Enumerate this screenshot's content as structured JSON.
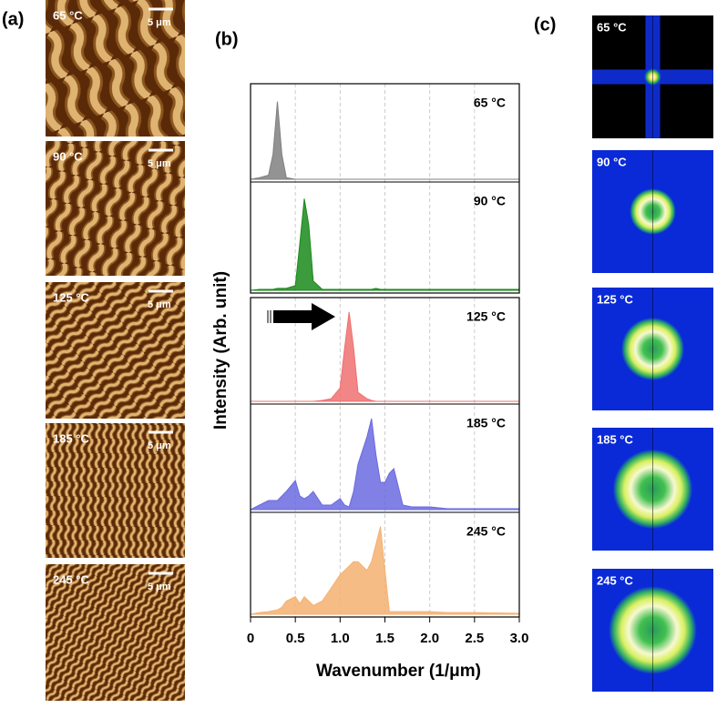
{
  "panel_a": {
    "label": "(a)",
    "images": [
      {
        "temperature": "65 °C",
        "scale_bar": "5 μm"
      },
      {
        "temperature": "90 °C",
        "scale_bar": "5 μm"
      },
      {
        "temperature": "125 °C",
        "scale_bar": "5 μm"
      },
      {
        "temperature": "185 °C",
        "scale_bar": "5 μm"
      },
      {
        "temperature": "245 °C",
        "scale_bar": "5 μm"
      }
    ]
  },
  "panel_b": {
    "label": "(b)"
  },
  "panel_c": {
    "label": "(c)",
    "images": [
      {
        "temperature": "65 °C"
      },
      {
        "temperature": "90 °C"
      },
      {
        "temperature": "125 °C"
      },
      {
        "temperature": "185 °C"
      },
      {
        "temperature": "245 °C"
      }
    ]
  },
  "chart_data": {
    "type": "area",
    "xlabel": "Wavenumber (1/μm)",
    "ylabel": "Intensity (Arb. unit)",
    "xlim": [
      0,
      3
    ],
    "xticks": [
      0,
      0.5,
      {
        "value": 1,
        "label": "1.0"
      },
      1.5,
      {
        "value": 2,
        "label": "2.0"
      },
      2.5,
      {
        "value": 3,
        "label": "3.0"
      }
    ],
    "ylim": [
      0,
      1.1
    ],
    "grid": true,
    "x": [
      0,
      0.1,
      0.2,
      0.25,
      0.3,
      0.35,
      0.4,
      0.5,
      0.55,
      0.6,
      0.65,
      0.7,
      0.8,
      0.9,
      1.0,
      1.05,
      1.1,
      1.15,
      1.2,
      1.3,
      1.35,
      1.4,
      1.45,
      1.5,
      1.55,
      1.6,
      1.7,
      1.8,
      2.0,
      2.2,
      2.5,
      3.0
    ],
    "series": [
      {
        "name": "65 °C",
        "color": "#808080",
        "values": [
          0,
          0.02,
          0.05,
          0.3,
          0.95,
          0.3,
          0.02,
          0,
          0,
          0,
          0,
          0,
          0,
          0,
          0,
          0,
          0,
          0,
          0,
          0,
          0,
          0,
          0,
          0,
          0,
          0,
          0,
          0,
          0,
          0,
          0,
          0
        ]
      },
      {
        "name": "90 °C",
        "color": "#1a8a1a",
        "values": [
          0,
          0.01,
          0.01,
          0.01,
          0.02,
          0.02,
          0.02,
          0.05,
          0.5,
          0.98,
          0.7,
          0.1,
          0.01,
          0.01,
          0.01,
          0.01,
          0.01,
          0.01,
          0.01,
          0.01,
          0.01,
          0.02,
          0.01,
          0.01,
          0.01,
          0.01,
          0.01,
          0.01,
          0.01,
          0.01,
          0.01,
          0.01
        ]
      },
      {
        "name": "125 °C",
        "color": "#f07070",
        "values": [
          0,
          0,
          0,
          0,
          0,
          0,
          0,
          0,
          0,
          0,
          0,
          0,
          0.01,
          0.03,
          0.15,
          0.6,
          1.0,
          0.6,
          0.1,
          0.03,
          0.01,
          0,
          0,
          0,
          0,
          0,
          0,
          0,
          0,
          0,
          0,
          0
        ]
      },
      {
        "name": "185 °C",
        "color": "#6a6ae0",
        "values": [
          0,
          0.05,
          0.1,
          0.1,
          0.1,
          0.15,
          0.2,
          0.32,
          0.15,
          0.12,
          0.15,
          0.2,
          0.05,
          0.05,
          0.12,
          0.05,
          0.03,
          0.2,
          0.5,
          0.8,
          1.0,
          0.6,
          0.3,
          0.3,
          0.4,
          0.45,
          0.05,
          0.03,
          0.03,
          0.01,
          0.01,
          0.01
        ]
      },
      {
        "name": "245 °C",
        "color": "#f5b070",
        "values": [
          0,
          0.02,
          0.03,
          0.04,
          0.05,
          0.08,
          0.15,
          0.2,
          0.12,
          0.2,
          0.15,
          0.1,
          0.15,
          0.3,
          0.45,
          0.5,
          0.55,
          0.6,
          0.6,
          0.5,
          0.6,
          0.8,
          1.0,
          0.5,
          0.03,
          0.03,
          0.03,
          0.03,
          0.03,
          0.02,
          0.02,
          0.01
        ]
      }
    ]
  }
}
